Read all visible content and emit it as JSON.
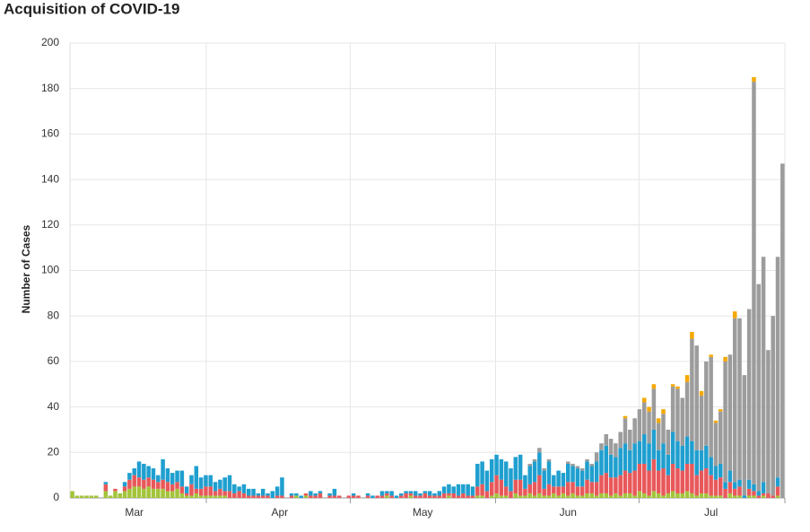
{
  "chart_data": {
    "type": "stacked_bar",
    "title": "Acquisition of COVID-19",
    "y_label": "Number of Cases",
    "xlim": [
      0,
      150
    ],
    "xticks": [
      {
        "value": 13.5,
        "label": "Mar"
      },
      {
        "value": 44,
        "label": "Apr"
      },
      {
        "value": 74,
        "label": "May"
      },
      {
        "value": 104.5,
        "label": "Jun"
      },
      {
        "value": 134.5,
        "label": "Jul"
      }
    ],
    "xgrid": [
      28.6,
      58.8,
      89.3,
      119.4,
      150
    ],
    "ylim": [
      0,
      200
    ],
    "yticks": [
      0,
      20,
      40,
      60,
      80,
      100,
      120,
      140,
      160,
      180,
      200
    ],
    "grid": true,
    "series": [
      {
        "color": "#a3c43a",
        "values": [
          3,
          1,
          1,
          1,
          1,
          1,
          0,
          3,
          1,
          3,
          2,
          3,
          4,
          5,
          5,
          4,
          5,
          4,
          4,
          4,
          3,
          3,
          4,
          2,
          1,
          1,
          2,
          1,
          1,
          1,
          1,
          1,
          1,
          0,
          0,
          0,
          0,
          0,
          0,
          0,
          0,
          0,
          0,
          0,
          0,
          0,
          0,
          1,
          0,
          1,
          0,
          0,
          0,
          0,
          0,
          0,
          0,
          0,
          0,
          0,
          0,
          0,
          0,
          0,
          0,
          0,
          1,
          0,
          0,
          0,
          0,
          1,
          0,
          0,
          0,
          0,
          0,
          0,
          0,
          1,
          0,
          0,
          0,
          0,
          0,
          1,
          1,
          0,
          1,
          2,
          1,
          1,
          0,
          2,
          1,
          1,
          2,
          1,
          2,
          1,
          1,
          2,
          1,
          2,
          1,
          2,
          1,
          1,
          2,
          2,
          1,
          2,
          2,
          1,
          2,
          1,
          2,
          2,
          1,
          3,
          2,
          1,
          3,
          2,
          1,
          2,
          3,
          2,
          2,
          3,
          2,
          1,
          2,
          2,
          1,
          1,
          1,
          0,
          2,
          1,
          1,
          0,
          1,
          1,
          0,
          1,
          0,
          0,
          1,
          0
        ]
      },
      {
        "color": "#e8585a",
        "values": [
          0,
          0,
          0,
          0,
          0,
          0,
          0,
          3,
          0,
          1,
          0,
          2,
          4,
          5,
          4,
          4,
          4,
          4,
          3,
          4,
          4,
          3,
          3,
          3,
          1,
          5,
          2,
          3,
          4,
          4,
          2,
          3,
          2,
          3,
          2,
          3,
          2,
          1,
          1,
          1,
          1,
          1,
          0,
          1,
          1,
          0,
          1,
          0,
          0,
          1,
          1,
          1,
          2,
          0,
          1,
          1,
          1,
          0,
          1,
          1,
          1,
          0,
          1,
          0,
          1,
          1,
          1,
          1,
          0,
          1,
          2,
          1,
          1,
          1,
          2,
          1,
          1,
          1,
          2,
          1,
          2,
          1,
          2,
          1,
          1,
          4,
          5,
          3,
          6,
          8,
          7,
          4,
          3,
          6,
          7,
          3,
          4,
          6,
          8,
          3,
          5,
          3,
          4,
          3,
          6,
          5,
          4,
          4,
          6,
          5,
          6,
          8,
          9,
          8,
          7,
          9,
          10,
          9,
          11,
          12,
          13,
          11,
          14,
          10,
          12,
          8,
          12,
          11,
          10,
          12,
          13,
          9,
          10,
          11,
          9,
          7,
          8,
          4,
          5,
          3,
          4,
          0,
          3,
          2,
          1,
          1,
          2,
          1,
          4,
          0
        ]
      },
      {
        "color": "#1f9fcf",
        "values": [
          0,
          0,
          0,
          0,
          0,
          0,
          0,
          1,
          0,
          0,
          0,
          2,
          3,
          3,
          7,
          7,
          5,
          5,
          3,
          9,
          6,
          5,
          5,
          7,
          3,
          4,
          10,
          5,
          5,
          5,
          4,
          4,
          6,
          7,
          4,
          2,
          4,
          3,
          3,
          1,
          3,
          1,
          3,
          4,
          8,
          0,
          1,
          1,
          1,
          0,
          2,
          1,
          1,
          0,
          1,
          3,
          0,
          0,
          0,
          1,
          0,
          0,
          1,
          1,
          0,
          2,
          1,
          2,
          1,
          1,
          1,
          1,
          2,
          1,
          1,
          2,
          1,
          2,
          3,
          4,
          3,
          5,
          4,
          5,
          4,
          10,
          10,
          9,
          10,
          9,
          9,
          11,
          10,
          10,
          11,
          6,
          8,
          9,
          10,
          8,
          10,
          5,
          7,
          6,
          8,
          7,
          8,
          7,
          8,
          7,
          9,
          11,
          12,
          10,
          9,
          12,
          12,
          10,
          12,
          10,
          13,
          12,
          13,
          9,
          11,
          9,
          14,
          12,
          11,
          12,
          10,
          11,
          9,
          10,
          8,
          6,
          6,
          3,
          5,
          3,
          3,
          1,
          4,
          3,
          2,
          5,
          0,
          0,
          4,
          0
        ]
      },
      {
        "color": "#9c9c9c",
        "values": [
          0,
          0,
          0,
          0,
          0,
          0,
          0,
          0,
          0,
          0,
          0,
          0,
          0,
          0,
          0,
          0,
          0,
          0,
          0,
          0,
          0,
          0,
          0,
          0,
          0,
          0,
          0,
          0,
          0,
          0,
          0,
          0,
          0,
          0,
          0,
          0,
          0,
          0,
          0,
          0,
          0,
          0,
          0,
          0,
          0,
          0,
          0,
          0,
          0,
          0,
          0,
          0,
          0,
          0,
          0,
          0,
          0,
          0,
          0,
          0,
          0,
          0,
          0,
          0,
          0,
          0,
          0,
          0,
          0,
          0,
          0,
          0,
          0,
          0,
          0,
          0,
          0,
          0,
          0,
          0,
          0,
          0,
          0,
          0,
          0,
          0,
          0,
          0,
          0,
          0,
          0,
          0,
          0,
          0,
          0,
          0,
          1,
          1,
          2,
          1,
          1,
          0,
          0,
          0,
          1,
          1,
          1,
          1,
          1,
          1,
          4,
          3,
          5,
          7,
          6,
          7,
          11,
          9,
          11,
          14,
          14,
          14,
          18,
          12,
          13,
          11,
          20,
          23,
          21,
          24,
          45,
          46,
          24,
          37,
          44,
          19,
          23,
          53,
          51,
          72,
          71,
          53,
          75,
          177,
          91,
          99,
          63,
          79,
          97,
          147
        ]
      },
      {
        "color": "#f5a800",
        "values": [
          0,
          0,
          0,
          0,
          0,
          0,
          0,
          0,
          0,
          0,
          0,
          0,
          0,
          0,
          0,
          0,
          0,
          0,
          0,
          0,
          0,
          0,
          0,
          0,
          0,
          0,
          0,
          0,
          0,
          0,
          0,
          0,
          0,
          0,
          0,
          0,
          0,
          0,
          0,
          0,
          0,
          0,
          0,
          0,
          0,
          0,
          0,
          0,
          0,
          0,
          0,
          0,
          0,
          0,
          0,
          0,
          0,
          0,
          0,
          0,
          0,
          0,
          0,
          0,
          0,
          0,
          0,
          0,
          0,
          0,
          0,
          0,
          0,
          0,
          0,
          0,
          0,
          0,
          0,
          0,
          0,
          0,
          0,
          0,
          0,
          0,
          0,
          0,
          0,
          0,
          0,
          0,
          0,
          0,
          0,
          0,
          0,
          0,
          0,
          0,
          0,
          0,
          0,
          0,
          0,
          0,
          0,
          0,
          0,
          0,
          0,
          0,
          0,
          0,
          0,
          0,
          1,
          0,
          0,
          0,
          2,
          2,
          2,
          2,
          2,
          0,
          1,
          1,
          0,
          3,
          3,
          0,
          2,
          0,
          1,
          1,
          1,
          2,
          0,
          3,
          0,
          0,
          0,
          2,
          0,
          0,
          0,
          0,
          0,
          0
        ]
      }
    ]
  }
}
